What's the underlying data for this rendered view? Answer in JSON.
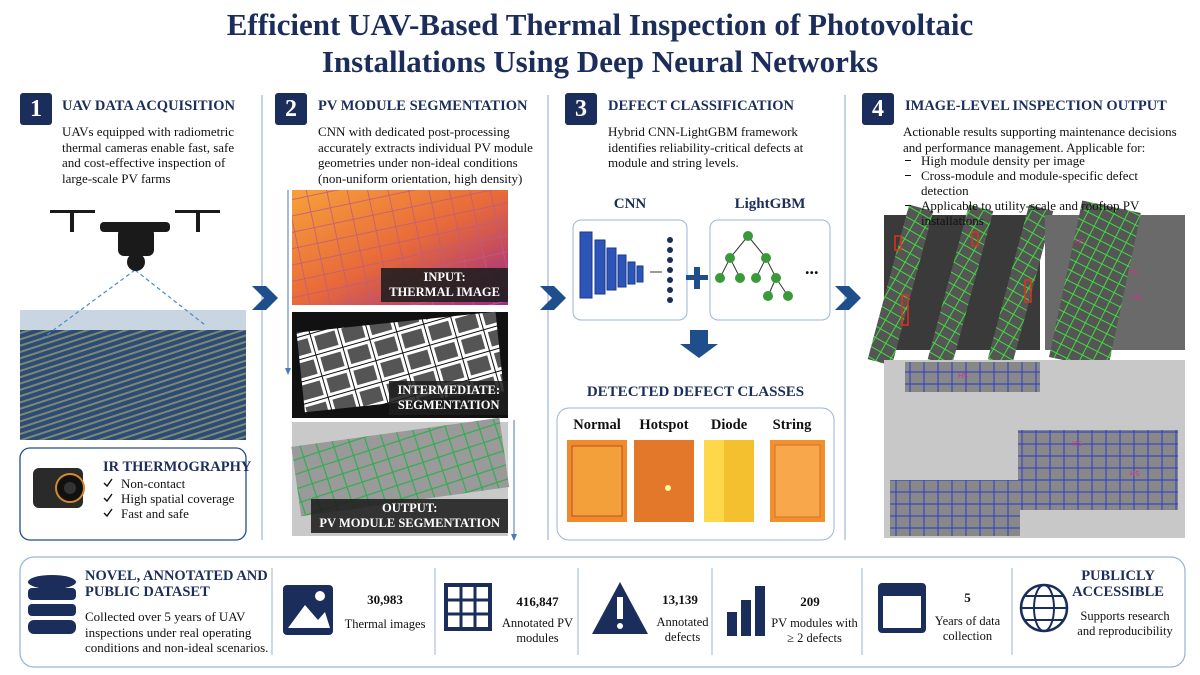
{
  "title": "Efficient UAV-Based Thermal Inspection of Photovoltaic Installations Using Deep Neural Networks",
  "steps": [
    {
      "number": "1",
      "heading": "UAV DATA ACQUISITION",
      "text": "UAVs equipped with radiometric thermal cameras enable fast, safe and cost-effective inspection of large-scale PV farms",
      "box": {
        "heading": "IR THERMOGRAPHY",
        "items": [
          "Non-contact",
          "High spatial coverage",
          "Fast and safe"
        ]
      }
    },
    {
      "number": "2",
      "heading": "PV MODULE SEGMENTATION",
      "text": "CNN with dedicated post-processing accurately extracts individual PV module geometries under non-ideal conditions (non-uniform orientation, high density)",
      "panels": [
        [
          "INPUT:",
          "THERMAL IMAGE"
        ],
        [
          "INTERMEDIATE:",
          "SEGMENTATION"
        ],
        [
          "OUTPUT:",
          "PV MODULE SEGMENTATION"
        ]
      ]
    },
    {
      "number": "3",
      "heading": "DEFECT CLASSIFICATION",
      "text": "Hybrid CNN-LightGBM framework identifies reliability-critical defects at module and string levels.",
      "models": [
        "CNN",
        "LightGBM"
      ],
      "more": "...",
      "classes_title": "DETECTED DEFECT CLASSES",
      "classes": [
        "Normal",
        "Hotspot",
        "Diode",
        "String"
      ]
    },
    {
      "number": "4",
      "heading": "IMAGE-LEVEL INSPECTION OUTPUT",
      "text": "Actionable results supporting maintenance decisions and performance management. Applicable for:",
      "items": [
        "High module density per image",
        "Cross-module and module-specific defect detection",
        "Applicable to utility-scale and rooftop PV installations"
      ],
      "image_label": "HS"
    }
  ],
  "dataset": {
    "heading": "NOVEL, ANNOTATED AND PUBLIC DATASET",
    "text": "Collected over 5 years of UAV inspections under real operating conditions and non-ideal scenarios."
  },
  "stats": [
    {
      "value": "30,983",
      "label": "Thermal images"
    },
    {
      "value": "416,847",
      "label": "Annotated PV modules"
    },
    {
      "value": "13,139",
      "label": "Annotated defects"
    },
    {
      "value": "209",
      "label": "PV modules with ≥ 2 defects"
    },
    {
      "value": "5",
      "label": "Years of data collection"
    }
  ],
  "access": {
    "heading": "PUBLICLY ACCESSIBLE",
    "text": "Supports research and reproducibility"
  }
}
